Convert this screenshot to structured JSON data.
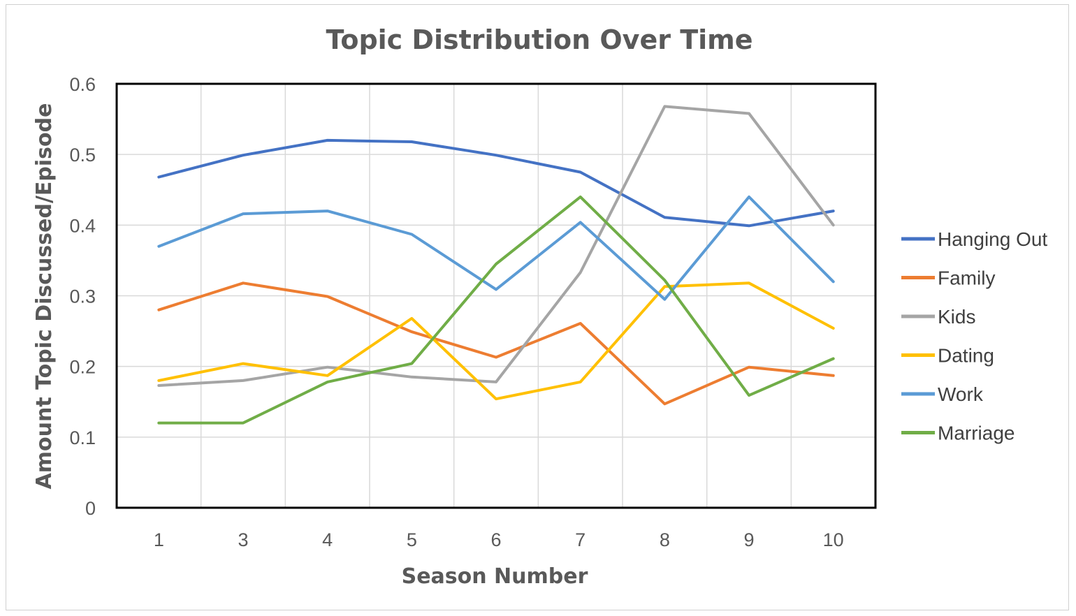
{
  "chart_data": {
    "type": "line",
    "title": "Topic Distribution Over Time",
    "xlabel": "Season Number",
    "ylabel": "Amount Topic Discussed/Episode",
    "categories": [
      "1",
      "3",
      "4",
      "5",
      "6",
      "7",
      "8",
      "9",
      "10"
    ],
    "ylim": [
      0,
      0.6
    ],
    "yticks": [
      "0",
      "0.1",
      "0.2",
      "0.3",
      "0.4",
      "0.5",
      "0.6"
    ],
    "grid": true,
    "legend_position": "right",
    "series": [
      {
        "name": "Hanging Out",
        "color": "#4472C4",
        "values": [
          0.468,
          0.499,
          0.52,
          0.518,
          0.499,
          0.475,
          0.411,
          0.399,
          0.42
        ]
      },
      {
        "name": "Family",
        "color": "#ED7D31",
        "values": [
          0.28,
          0.318,
          0.299,
          0.249,
          0.213,
          0.261,
          0.147,
          0.199,
          0.187
        ]
      },
      {
        "name": "Kids",
        "color": "#A5A5A5",
        "values": [
          0.173,
          0.18,
          0.199,
          0.185,
          0.178,
          0.333,
          0.568,
          0.558,
          0.4
        ]
      },
      {
        "name": "Dating",
        "color": "#FFC000",
        "values": [
          0.18,
          0.204,
          0.187,
          0.268,
          0.154,
          0.178,
          0.313,
          0.318,
          0.254
        ]
      },
      {
        "name": "Work",
        "color": "#5B9BD5",
        "values": [
          0.37,
          0.416,
          0.42,
          0.387,
          0.309,
          0.404,
          0.295,
          0.44,
          0.32
        ]
      },
      {
        "name": "Marriage",
        "color": "#70AD47",
        "values": [
          0.12,
          0.12,
          0.178,
          0.204,
          0.345,
          0.44,
          0.322,
          0.159,
          0.211
        ]
      }
    ]
  }
}
